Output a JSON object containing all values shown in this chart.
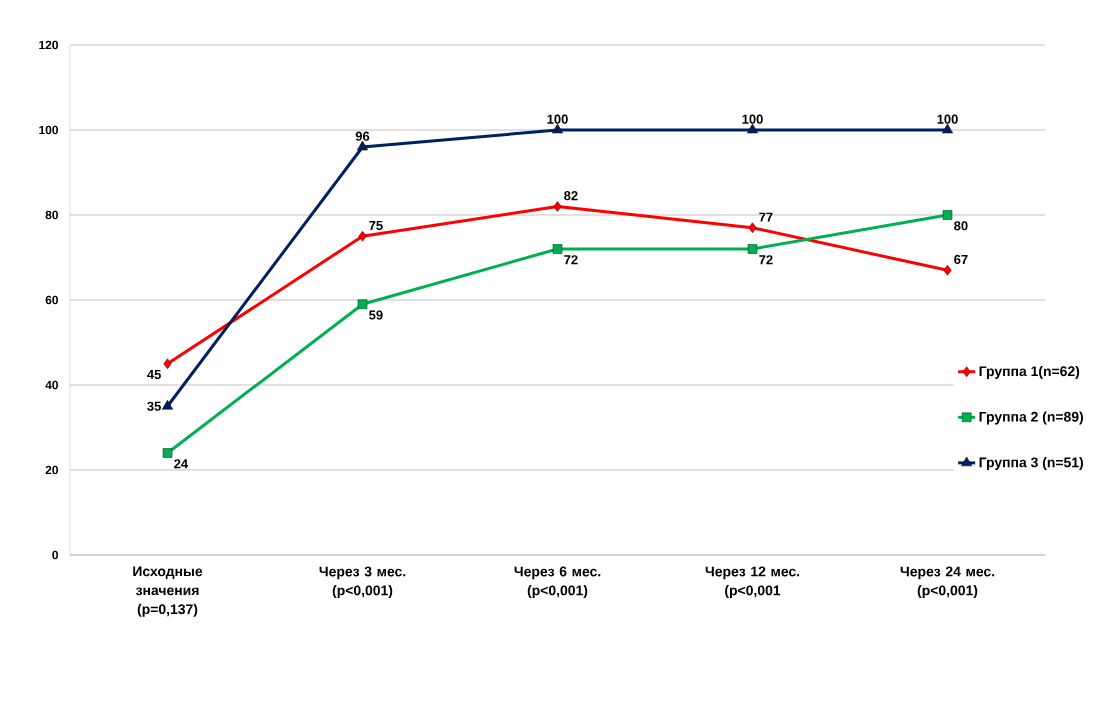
{
  "chart_data": {
    "type": "line",
    "categories": [
      "Исходные значения (p=0,137)",
      "Через 3 мес. (p<0,001)",
      "Через 6 мес. (p<0,001)",
      "Через 12 мес. (p<0,001",
      "Через 24 мес. (p<0,001)"
    ],
    "series": [
      {
        "name": "Группа 1(n=62)",
        "color": "#ff0000",
        "marker": "diamond",
        "values": [
          45,
          75,
          82,
          77,
          67
        ]
      },
      {
        "name": "Группа 2 (n=89)",
        "color": "#00b050",
        "marker": "square",
        "values": [
          24,
          59,
          72,
          72,
          80
        ]
      },
      {
        "name": "Группа 3 (n=51)",
        "color": "#002060",
        "marker": "triangle",
        "values": [
          35,
          96,
          100,
          100,
          100
        ]
      }
    ],
    "ylim": [
      0,
      120
    ],
    "yticks": [
      0,
      20,
      40,
      60,
      80,
      100,
      120
    ],
    "grid": "y",
    "legend": "right",
    "data_labels": true
  }
}
